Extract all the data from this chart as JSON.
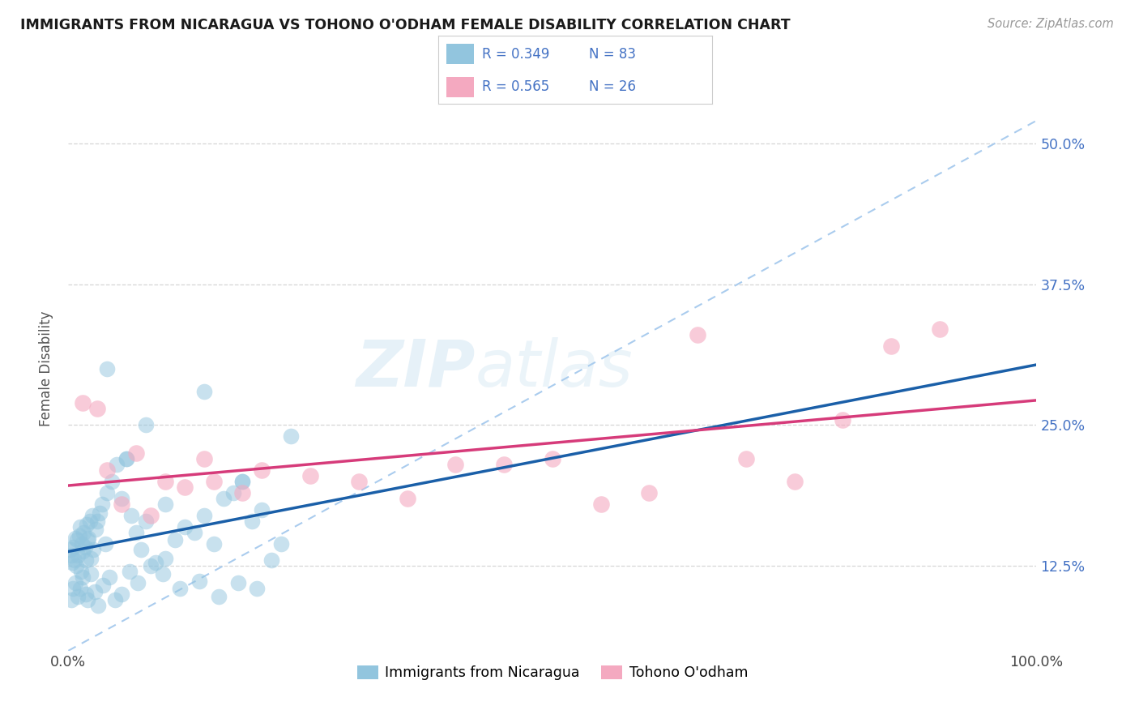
{
  "title": "IMMIGRANTS FROM NICARAGUA VS TOHONO O'ODHAM FEMALE DISABILITY CORRELATION CHART",
  "source": "Source: ZipAtlas.com",
  "ylabel": "Female Disability",
  "legend_label1": "Immigrants from Nicaragua",
  "legend_label2": "Tohono O'odham",
  "legend_r1": "R = 0.349",
  "legend_n1": "N = 83",
  "legend_r2": "R = 0.565",
  "legend_n2": "N = 26",
  "blue_color": "#92c5de",
  "pink_color": "#f4a9c0",
  "blue_line_color": "#1a5fa8",
  "pink_line_color": "#d63b7a",
  "diag_line_color": "#aaccee",
  "background_color": "#ffffff",
  "text_color_blue": "#4472c4",
  "y_ticks": [
    12.5,
    25.0,
    37.5,
    50.0
  ],
  "y_lim": [
    5,
    55
  ],
  "x_lim": [
    0,
    100
  ],
  "blue_x": [
    0.2,
    0.3,
    0.4,
    0.5,
    0.6,
    0.7,
    0.8,
    0.9,
    1.0,
    1.1,
    1.2,
    1.3,
    1.4,
    1.5,
    1.6,
    1.7,
    1.8,
    1.9,
    2.0,
    2.1,
    2.2,
    2.3,
    2.5,
    2.6,
    2.8,
    3.0,
    3.2,
    3.5,
    3.8,
    4.0,
    4.5,
    5.0,
    5.5,
    6.0,
    6.5,
    7.0,
    7.5,
    8.0,
    9.0,
    10.0,
    11.0,
    12.0,
    13.0,
    14.0,
    15.0,
    16.0,
    17.0,
    18.0,
    19.0,
    20.0,
    21.0,
    22.0,
    23.0,
    0.3,
    0.5,
    0.7,
    1.0,
    1.2,
    1.5,
    1.8,
    2.0,
    2.3,
    2.7,
    3.1,
    3.6,
    4.2,
    4.8,
    5.5,
    6.3,
    7.2,
    8.5,
    9.8,
    11.5,
    13.5,
    15.5,
    17.5,
    19.5,
    4.0,
    6.0,
    8.0,
    10.0,
    14.0,
    18.0
  ],
  "blue_y": [
    14.0,
    13.5,
    12.8,
    14.2,
    13.0,
    15.0,
    12.5,
    14.8,
    13.5,
    15.2,
    16.0,
    12.0,
    14.5,
    13.8,
    15.5,
    14.2,
    13.0,
    16.2,
    14.8,
    15.0,
    16.5,
    13.2,
    17.0,
    14.0,
    15.8,
    16.5,
    17.2,
    18.0,
    14.5,
    19.0,
    20.0,
    21.5,
    18.5,
    22.0,
    17.0,
    15.5,
    14.0,
    16.5,
    12.8,
    13.2,
    14.8,
    16.0,
    15.5,
    17.0,
    14.5,
    18.5,
    19.0,
    20.0,
    16.5,
    17.5,
    13.0,
    14.5,
    24.0,
    9.5,
    10.5,
    11.0,
    9.8,
    10.5,
    11.5,
    10.0,
    9.5,
    11.8,
    10.2,
    9.0,
    10.8,
    11.5,
    9.5,
    10.0,
    12.0,
    11.0,
    12.5,
    11.8,
    10.5,
    11.2,
    9.8,
    11.0,
    10.5,
    30.0,
    22.0,
    25.0,
    18.0,
    28.0,
    20.0
  ],
  "pink_x": [
    1.5,
    3.0,
    4.0,
    5.5,
    7.0,
    8.5,
    10.0,
    12.0,
    14.0,
    20.0,
    25.0,
    35.0,
    40.0,
    50.0,
    55.0,
    60.0,
    65.0,
    70.0,
    75.0,
    80.0,
    85.0,
    90.0,
    15.0,
    18.0,
    30.0,
    45.0
  ],
  "pink_y": [
    27.0,
    26.5,
    21.0,
    18.0,
    22.5,
    17.0,
    20.0,
    19.5,
    22.0,
    21.0,
    20.5,
    18.5,
    21.5,
    22.0,
    18.0,
    19.0,
    33.0,
    22.0,
    20.0,
    25.5,
    32.0,
    33.5,
    20.0,
    19.0,
    20.0,
    21.5
  ]
}
